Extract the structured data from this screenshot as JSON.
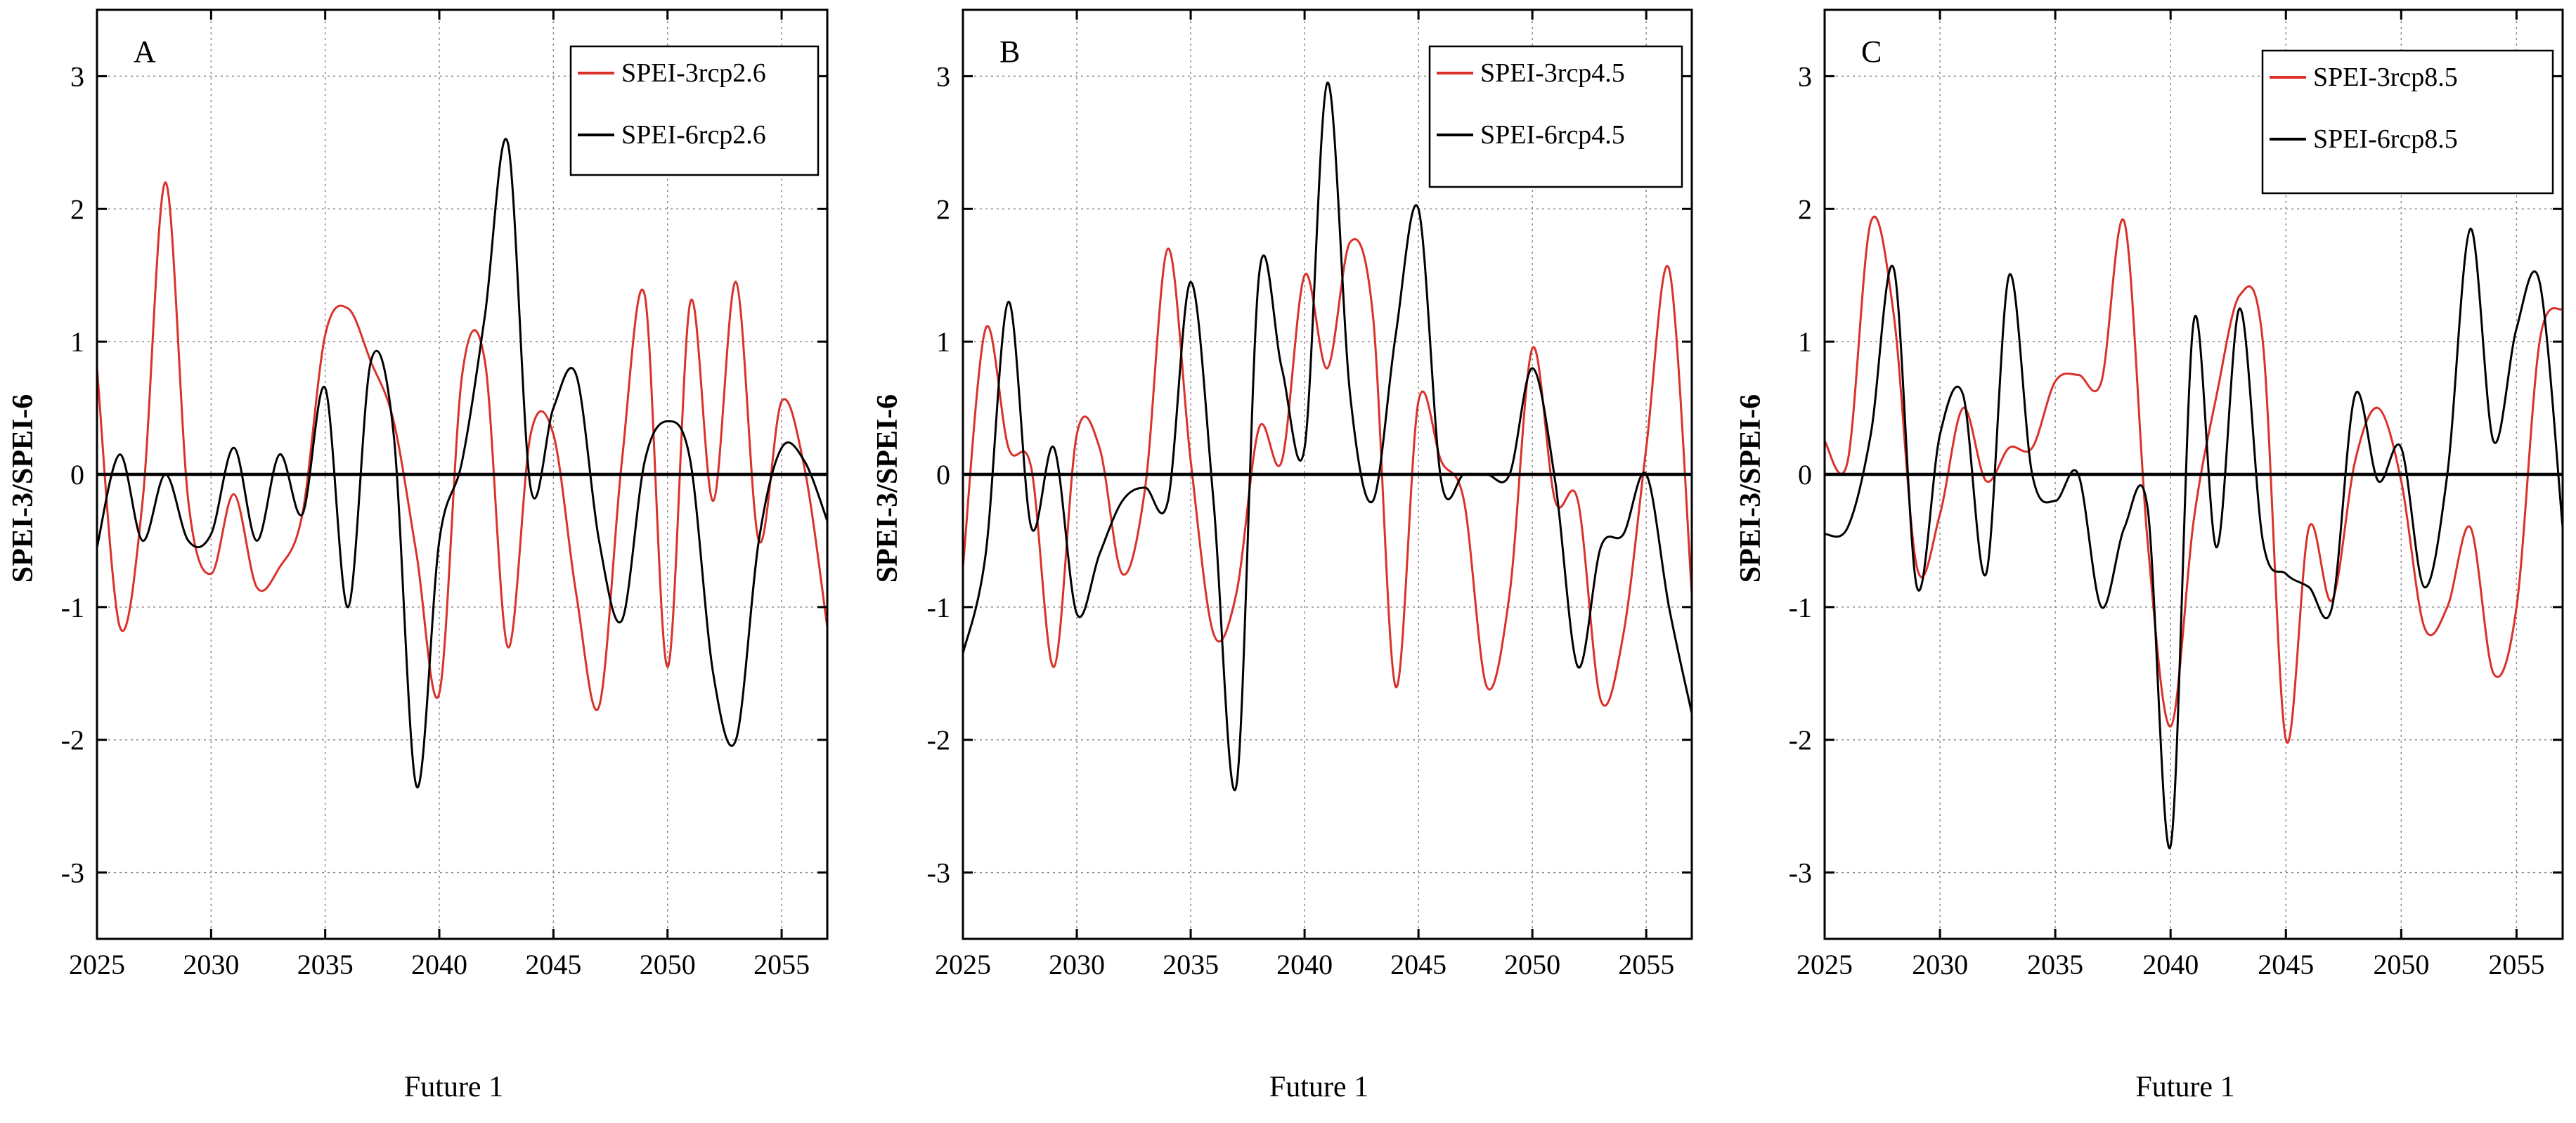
{
  "colors": {
    "spei3": "#d9322b",
    "spei6": "#000000",
    "grid": "#8a8a8a",
    "frame": "#000000"
  },
  "chart_data": [
    {
      "type": "line",
      "panel_label": "A",
      "xlabel": "Future 1",
      "ylabel": "SPEI-3/SPEI-6",
      "xlim": [
        2025,
        2057
      ],
      "ylim": [
        -3.5,
        3.5
      ],
      "x_ticks": [
        2025,
        2030,
        2035,
        2040,
        2045,
        2050,
        2055
      ],
      "y_ticks": [
        -3,
        -2,
        -1,
        0,
        1,
        2,
        3
      ],
      "grid": true,
      "legend_position": "top-right",
      "series": [
        {
          "name": "SPEI-3rcp2.6",
          "color_key": "spei3",
          "x": [
            2025,
            2026,
            2027,
            2028,
            2029,
            2030,
            2031,
            2032,
            2033,
            2034,
            2035,
            2036,
            2037,
            2038,
            2039,
            2040,
            2041,
            2042,
            2043,
            2044,
            2045,
            2046,
            2047,
            2048,
            2049,
            2050,
            2051,
            2052,
            2053,
            2054,
            2055,
            2056,
            2057
          ],
          "values": [
            0.8,
            -1.15,
            -0.2,
            2.2,
            -0.2,
            -0.75,
            -0.15,
            -0.85,
            -0.7,
            -0.3,
            1.05,
            1.25,
            0.85,
            0.4,
            -0.6,
            -1.65,
            0.75,
            0.85,
            -1.3,
            0.3,
            0.3,
            -0.9,
            -1.75,
            0.1,
            1.35,
            -1.45,
            1.3,
            -0.2,
            1.45,
            -0.5,
            0.55,
            0.05,
            -1.15
          ]
        },
        {
          "name": "SPEI-6rcp2.6",
          "color_key": "spei6",
          "x": [
            2025,
            2026,
            2027,
            2028,
            2029,
            2030,
            2031,
            2032,
            2033,
            2034,
            2035,
            2036,
            2037,
            2038,
            2039,
            2040,
            2041,
            2042,
            2043,
            2044,
            2045,
            2046,
            2047,
            2048,
            2049,
            2050,
            2051,
            2052,
            2053,
            2054,
            2055,
            2056,
            2057
          ],
          "values": [
            -0.55,
            0.15,
            -0.5,
            0.0,
            -0.5,
            -0.45,
            0.2,
            -0.5,
            0.15,
            -0.3,
            0.65,
            -1.0,
            0.85,
            0.3,
            -2.35,
            -0.5,
            0.1,
            1.2,
            2.5,
            -0.1,
            0.5,
            0.75,
            -0.5,
            -1.1,
            0.1,
            0.4,
            0.1,
            -1.5,
            -2.0,
            -0.5,
            0.2,
            0.1,
            -0.35
          ]
        },
        {
          "name": "Zero baseline",
          "color_key": "spei6",
          "x": [
            2025,
            2057
          ],
          "values": [
            0.0,
            0.0
          ]
        }
      ]
    },
    {
      "type": "line",
      "panel_label": "B",
      "xlabel": "Future 1",
      "ylabel": "SPEI-3/SPEI-6",
      "xlim": [
        2025,
        2057
      ],
      "ylim": [
        -3.5,
        3.5
      ],
      "x_ticks": [
        2025,
        2030,
        2035,
        2040,
        2045,
        2050,
        2055
      ],
      "y_ticks": [
        -3,
        -2,
        -1,
        0,
        1,
        2,
        3
      ],
      "grid": true,
      "legend_position": "top-right",
      "series": [
        {
          "name": "SPEI-3rcp4.5",
          "color_key": "spei3",
          "x": [
            2025,
            2026,
            2027,
            2028,
            2029,
            2030,
            2031,
            2032,
            2033,
            2034,
            2035,
            2036,
            2037,
            2038,
            2039,
            2040,
            2041,
            2042,
            2043,
            2044,
            2045,
            2046,
            2047,
            2048,
            2049,
            2050,
            2051,
            2052,
            2053,
            2054,
            2055,
            2056,
            2057
          ],
          "values": [
            -0.7,
            1.1,
            0.2,
            0.05,
            -1.45,
            0.3,
            0.2,
            -0.75,
            -0.1,
            1.7,
            0.1,
            -1.2,
            -0.9,
            0.35,
            0.1,
            1.5,
            0.8,
            1.75,
            1.2,
            -1.6,
            0.55,
            0.1,
            -0.2,
            -1.6,
            -0.9,
            0.95,
            -0.2,
            -0.2,
            -1.7,
            -1.2,
            0.2,
            1.55,
            -0.9
          ]
        },
        {
          "name": "SPEI-6rcp4.5",
          "color_key": "spei6",
          "x": [
            2025,
            2026,
            2027,
            2028,
            2029,
            2030,
            2031,
            2032,
            2033,
            2034,
            2035,
            2036,
            2037,
            2038,
            2039,
            2040,
            2041,
            2042,
            2043,
            2044,
            2045,
            2046,
            2047,
            2048,
            2049,
            2050,
            2051,
            2052,
            2053,
            2054,
            2055,
            2056,
            2057
          ],
          "values": [
            -1.35,
            -0.6,
            1.3,
            -0.4,
            0.2,
            -1.05,
            -0.6,
            -0.2,
            -0.1,
            -0.2,
            1.45,
            -0.2,
            -2.35,
            1.5,
            0.8,
            0.2,
            2.95,
            0.6,
            -0.2,
            1.05,
            2.0,
            -0.05,
            0.0,
            0.0,
            0.0,
            0.8,
            -0.05,
            -1.45,
            -0.55,
            -0.45,
            0.0,
            -1.0,
            -1.8
          ]
        },
        {
          "name": "Zero baseline",
          "color_key": "spei6",
          "x": [
            2025,
            2057
          ],
          "values": [
            0.0,
            0.0
          ]
        }
      ]
    },
    {
      "type": "line",
      "panel_label": "C",
      "xlabel": "Future 1",
      "ylabel": "SPEI-3/SPEI-6",
      "xlim": [
        2025,
        2057
      ],
      "ylim": [
        -3.5,
        3.5
      ],
      "x_ticks": [
        2025,
        2030,
        2035,
        2040,
        2045,
        2050,
        2055
      ],
      "y_ticks": [
        -3,
        -2,
        -1,
        0,
        1,
        2,
        3
      ],
      "grid": true,
      "legend_position": "top-right",
      "series": [
        {
          "name": "SPEI-3rcp8.5",
          "color_key": "spei3",
          "x": [
            2025,
            2026,
            2027,
            2028,
            2029,
            2030,
            2031,
            2032,
            2033,
            2034,
            2035,
            2036,
            2037,
            2038,
            2039,
            2040,
            2041,
            2042,
            2043,
            2044,
            2045,
            2046,
            2047,
            2048,
            2049,
            2050,
            2051,
            2052,
            2053,
            2054,
            2055,
            2056,
            2057
          ],
          "values": [
            0.25,
            0.1,
            1.9,
            1.2,
            -0.7,
            -0.3,
            0.5,
            -0.05,
            0.2,
            0.2,
            0.7,
            0.75,
            0.7,
            1.9,
            -0.5,
            -1.9,
            -0.35,
            0.6,
            1.35,
            1.0,
            -2.0,
            -0.4,
            -0.95,
            0.1,
            0.5,
            -0.05,
            -1.15,
            -1.0,
            -0.4,
            -1.5,
            -1.0,
            1.0,
            1.25
          ]
        },
        {
          "name": "SPEI-6rcp8.5",
          "color_key": "spei6",
          "x": [
            2025,
            2026,
            2027,
            2028,
            2029,
            2030,
            2031,
            2032,
            2033,
            2034,
            2035,
            2036,
            2037,
            2038,
            2039,
            2040,
            2041,
            2042,
            2043,
            2044,
            2045,
            2046,
            2047,
            2048,
            2049,
            2050,
            2051,
            2052,
            2053,
            2054,
            2055,
            2056,
            2057
          ],
          "values": [
            -0.45,
            -0.4,
            0.3,
            1.55,
            -0.85,
            0.3,
            0.6,
            -0.75,
            1.5,
            0.0,
            -0.2,
            0.0,
            -1.0,
            -0.4,
            -0.25,
            -2.8,
            1.15,
            -0.55,
            1.25,
            -0.5,
            -0.75,
            -0.85,
            -1.0,
            0.6,
            -0.05,
            0.2,
            -0.85,
            0.0,
            1.85,
            0.25,
            1.1,
            1.45,
            -0.4
          ]
        },
        {
          "name": "Zero baseline",
          "color_key": "spei6",
          "x": [
            2025,
            2057
          ],
          "values": [
            0.0,
            0.0
          ]
        }
      ]
    }
  ]
}
